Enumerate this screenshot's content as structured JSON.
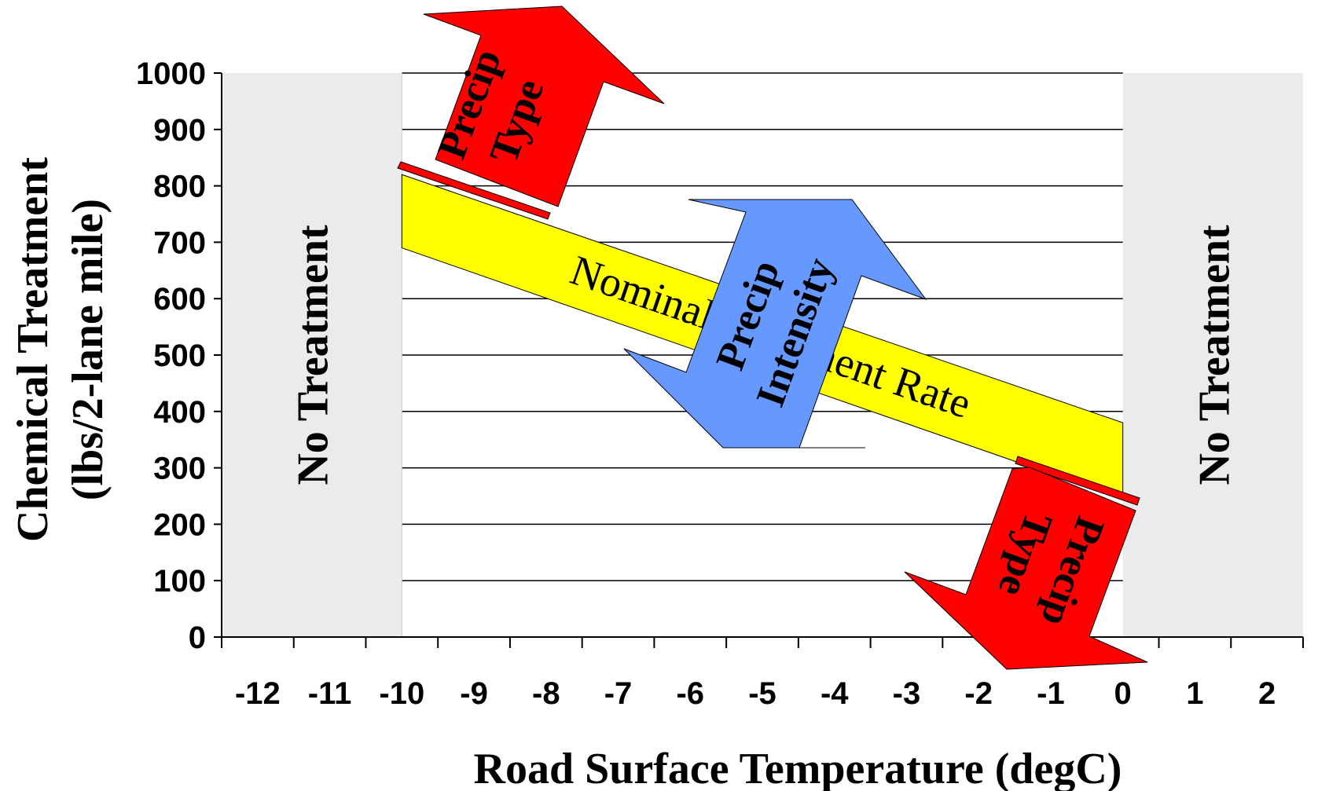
{
  "chart_data": {
    "type": "area",
    "xlabel": "Road Surface Temperature (degC)",
    "ylabel_line1": "Chemical Treatment",
    "ylabel_line2": "(lbs/2-lane mile)",
    "xlim": [
      -12.5,
      2.5
    ],
    "ylim": [
      0,
      1000
    ],
    "x_ticks": [
      -12,
      -11,
      -10,
      -9,
      -8,
      -7,
      -6,
      -5,
      -4,
      -3,
      -2,
      -1,
      0,
      1,
      2
    ],
    "x_tick_labels": [
      "-12",
      "-11",
      "-10",
      "-9",
      "-8",
      "-7",
      "-6",
      "-5",
      "-4",
      "-3",
      "-2",
      "-1",
      "0",
      "1",
      "2"
    ],
    "y_ticks": [
      0,
      100,
      200,
      300,
      400,
      500,
      600,
      700,
      800,
      900,
      1000
    ],
    "y_tick_labels": [
      "0",
      "100",
      "200",
      "300",
      "400",
      "500",
      "600",
      "700",
      "800",
      "900",
      "1000"
    ],
    "grid": "horizontal",
    "no_treatment_zones": [
      {
        "x_start": -12.5,
        "x_end": -10,
        "label": "No Treatment"
      },
      {
        "x_start": 0,
        "x_end": 2.5,
        "label": "No Treatment"
      }
    ],
    "nominal_band": {
      "label": "Nominal Treatment Rate",
      "x": [
        -10,
        0
      ],
      "upper": [
        820,
        380
      ],
      "lower": [
        690,
        245
      ]
    },
    "annotations": [
      {
        "label_line1": "Precip",
        "label_line2": "Type",
        "direction": "up",
        "color": "#ff0000"
      },
      {
        "label_line1": "Precip",
        "label_line2": "Intensity",
        "direction": "up-down",
        "color": "#6699ff"
      },
      {
        "label_line1": "Precip",
        "label_line2": "Type",
        "direction": "down",
        "color": "#ff0000"
      }
    ],
    "colors": {
      "no_treatment_fill": "#ebebeb",
      "nominal_band_fill": "#ffff00",
      "precip_type_fill": "#ff0000",
      "precip_intensity_fill": "#6699ff",
      "grid": "#000000"
    }
  }
}
